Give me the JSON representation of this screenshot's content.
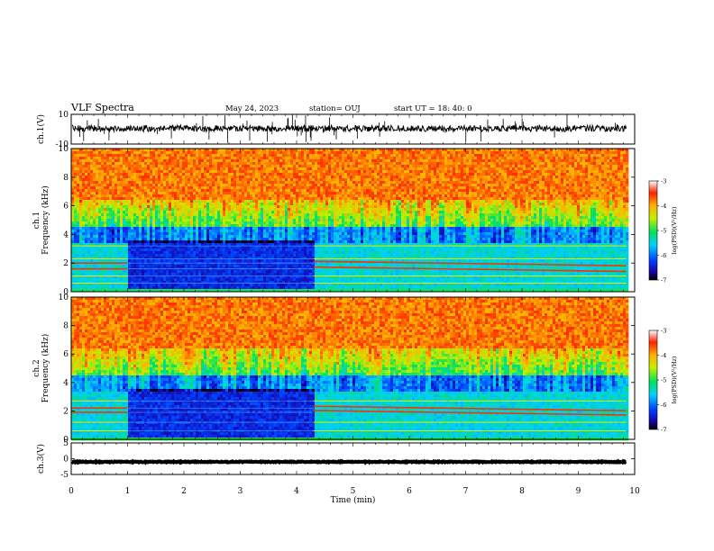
{
  "header": {
    "title": "VLF Spectra",
    "date": "May 24, 2023",
    "station": "station= OUJ",
    "start": "start  UT =  18: 40: 0"
  },
  "chart_data": [
    {
      "type": "line",
      "panel": "ch1-waveform",
      "ylabel": "ch.1(V)",
      "ylim": [
        -10,
        10
      ],
      "yticks": [
        "10",
        "-10"
      ],
      "baseline_value": 0.5,
      "color": "#000000"
    },
    {
      "type": "heatmap",
      "panel": "ch1-spectrogram",
      "ylabel": "ch.1\nFrequency (kHz)",
      "ylim": [
        0,
        10
      ],
      "yticks": [
        "0",
        "2",
        "4",
        "6",
        "8",
        "10"
      ],
      "xlim": [
        0,
        10
      ],
      "quiet_interval_min": [
        1.0,
        4.3
      ],
      "bands_khz": [
        0.6,
        1.1,
        1.6,
        2.0,
        2.3,
        3.2
      ],
      "colorbar": {
        "label": "log(PSD)(V²/Hz)",
        "ticks": [
          "-3",
          "-4",
          "-5",
          "-6",
          "-7"
        ],
        "range": [
          -7,
          -3
        ]
      }
    },
    {
      "type": "heatmap",
      "panel": "ch2-spectrogram",
      "ylabel": "ch.2\nFrequency (kHz)",
      "ylim": [
        0,
        10
      ],
      "yticks": [
        "0",
        "2",
        "4",
        "6",
        "8",
        "10"
      ],
      "xlim": [
        0,
        10
      ],
      "quiet_interval_min": [
        1.0,
        4.3
      ],
      "bands_khz": [
        0.6,
        1.2,
        1.9,
        2.2,
        2.7
      ],
      "colorbar": {
        "label": "log(PSD)(V²/Hz)",
        "ticks": [
          "-3",
          "-4",
          "-5",
          "-6",
          "-7"
        ],
        "range": [
          -7,
          -3
        ]
      }
    },
    {
      "type": "line",
      "panel": "ch3-waveform",
      "ylabel": "ch.3(V)",
      "ylim": [
        -5,
        5
      ],
      "yticks": [
        "5",
        "0",
        "-5"
      ],
      "baseline_value": -1.0,
      "color": "#000000"
    }
  ],
  "xaxis": {
    "label": "Time  (min)",
    "ticks": [
      "0",
      "1",
      "2",
      "3",
      "4",
      "5",
      "6",
      "7",
      "8",
      "9",
      "10"
    ],
    "xlim": [
      0,
      10
    ]
  },
  "data_end_min": 9.85
}
